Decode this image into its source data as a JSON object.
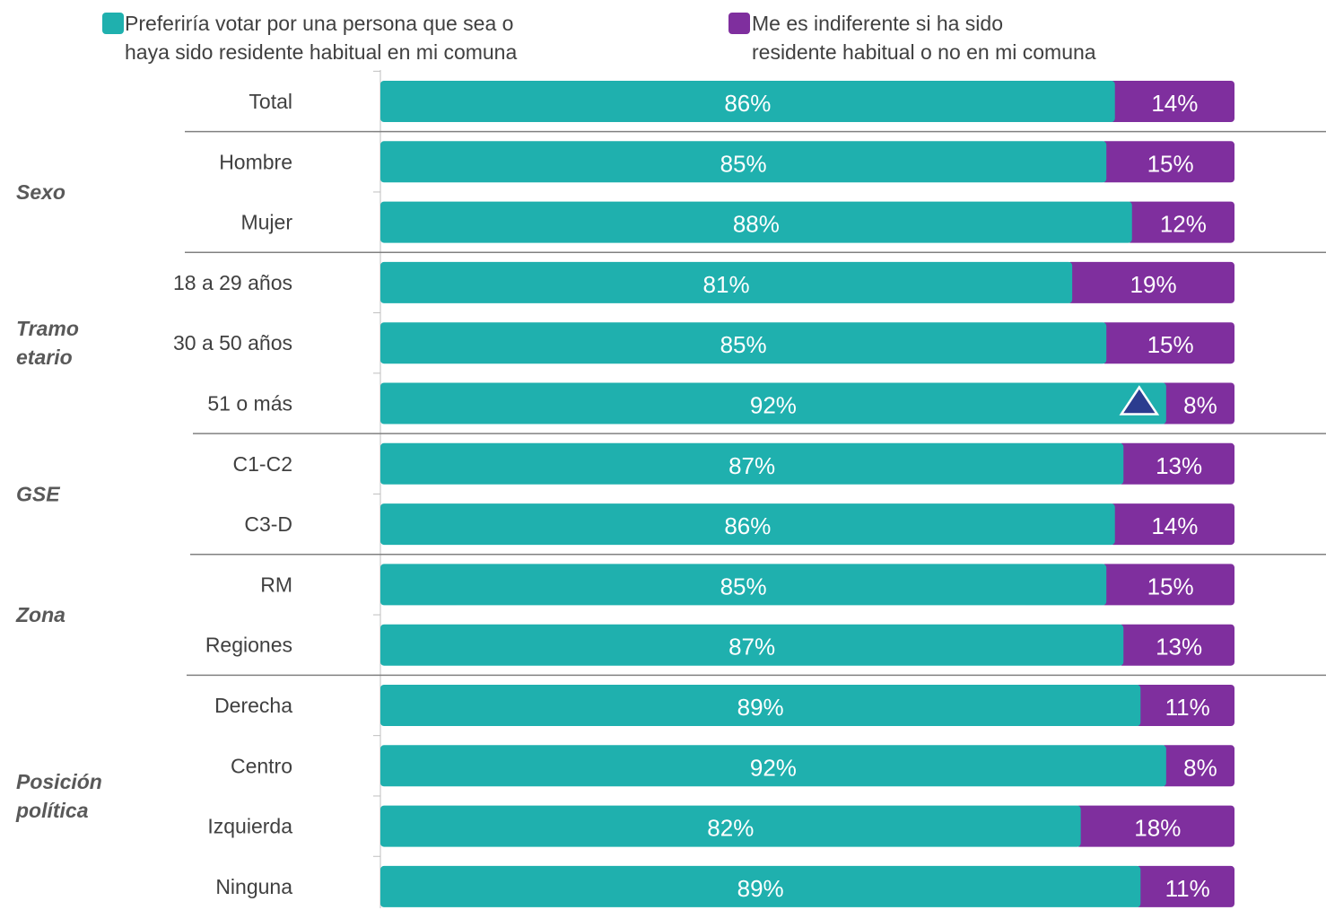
{
  "legend": {
    "items": [
      {
        "line1": "Preferiría votar por una persona que sea o",
        "line2": "haya sido residente habitual en mi comuna",
        "color": "#1fb0ae"
      },
      {
        "line1": "Me es indiferente si ha sido",
        "line2": "residente habitual o no en mi comuna",
        "color": "#7f2f9e"
      }
    ]
  },
  "chart_data": {
    "type": "bar",
    "orientation": "horizontal",
    "stacked": true,
    "categories": [
      "Total",
      "Hombre",
      "Mujer",
      "18 a 29 años",
      "30 a 50 años",
      "51 o más",
      "C1-C2",
      "C3-D",
      "RM",
      "Regiones",
      "Derecha",
      "Centro",
      "Izquierda",
      "Ninguna"
    ],
    "groups": [
      {
        "label": "Sexo",
        "categories": [
          "Hombre",
          "Mujer"
        ]
      },
      {
        "label": "Tramo etario",
        "categories": [
          "18 a 29 años",
          "30 a 50 años",
          "51 o más"
        ]
      },
      {
        "label": "GSE",
        "categories": [
          "C1-C2",
          "C3-D"
        ]
      },
      {
        "label": "Zona",
        "categories": [
          "RM",
          "Regiones"
        ]
      },
      {
        "label": "Posición política",
        "categories": [
          "Derecha",
          "Centro",
          "Izquierda",
          "Ninguna"
        ]
      }
    ],
    "series": [
      {
        "name": "Preferiría votar por una persona que sea o haya sido residente habitual en mi comuna",
        "color": "#1fb0ae",
        "values": [
          86,
          85,
          88,
          81,
          85,
          92,
          87,
          86,
          85,
          87,
          89,
          92,
          82,
          89
        ],
        "labels": [
          "86%",
          "85%",
          "88%",
          "81%",
          "85%",
          "92%",
          "87%",
          "86%",
          "85%",
          "87%",
          "89%",
          "92%",
          "82%",
          "89%"
        ]
      },
      {
        "name": "Me es indiferente si ha sido residente habitual o no en mi comuna",
        "color": "#7f2f9e",
        "values": [
          14,
          15,
          12,
          19,
          15,
          8,
          13,
          14,
          15,
          13,
          11,
          8,
          18,
          11
        ],
        "labels": [
          "14%",
          "15%",
          "12%",
          "19%",
          "15%",
          "8%",
          "13%",
          "14%",
          "15%",
          "13%",
          "11%",
          "8%",
          "18%",
          "11%"
        ]
      }
    ],
    "markers": [
      {
        "category": "51 o más",
        "shape": "triangle-up",
        "color": "#2b3c8f",
        "meaning": "significant difference"
      }
    ],
    "xlim": [
      0,
      100
    ]
  }
}
